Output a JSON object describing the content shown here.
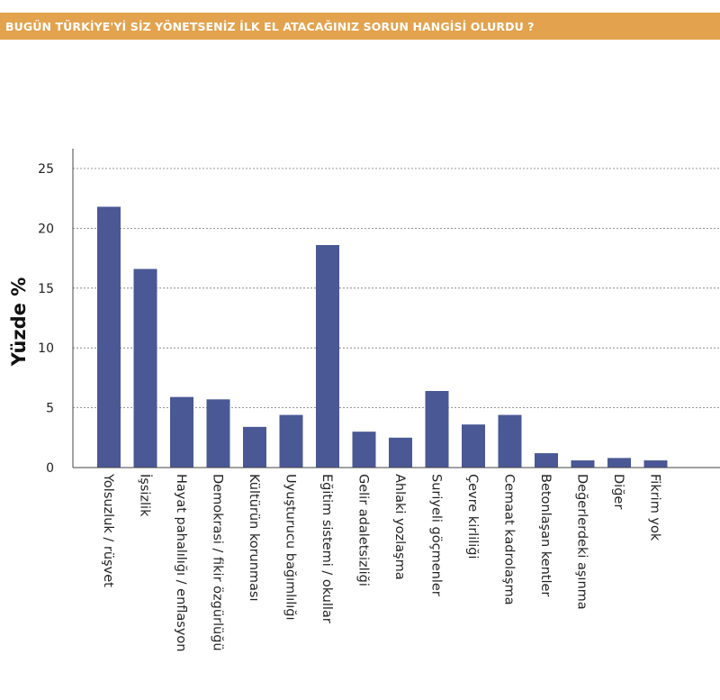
{
  "header": {
    "title": "BUGÜN TÜRKİYE'Yİ SİZ YÖNETSENİZ İLK EL ATACAĞINIZ SORUN HANGİSİ OLURDU ?"
  },
  "colors": {
    "banner": "#E3A24D",
    "bar": "#4A5895",
    "grid": "#777777",
    "axis": "#444444"
  },
  "chart_data": {
    "type": "bar",
    "title": "",
    "xlabel": "",
    "ylabel": "Yüzde %",
    "ylim": [
      0,
      25
    ],
    "yticks": [
      0,
      5,
      10,
      15,
      20,
      25
    ],
    "grid": true,
    "categories": [
      "Yolsuzluk / rüşvet",
      "İşsizlik",
      "Hayat pahalılığı / enflasyon",
      "Demokrasi / fikir özgürlüğü",
      "Kültürün korunması",
      "Uyuşturucu bağımlılığı",
      "Eğitim sistemi / okullar",
      "Gelir adaletsizliği",
      "Ahlaki yozlaşma",
      "Suriyeli göçmenler",
      "Çevre kirliliği",
      "Cemaat kadrolaşma",
      "Betonlaşan kentler",
      "Değerlerdeki aşınma",
      "Diğer",
      "Fikrim yok"
    ],
    "values": [
      21.8,
      16.6,
      5.9,
      5.7,
      3.4,
      4.4,
      18.6,
      3.0,
      2.5,
      6.4,
      3.6,
      4.4,
      1.2,
      0.6,
      0.8,
      0.6
    ]
  }
}
